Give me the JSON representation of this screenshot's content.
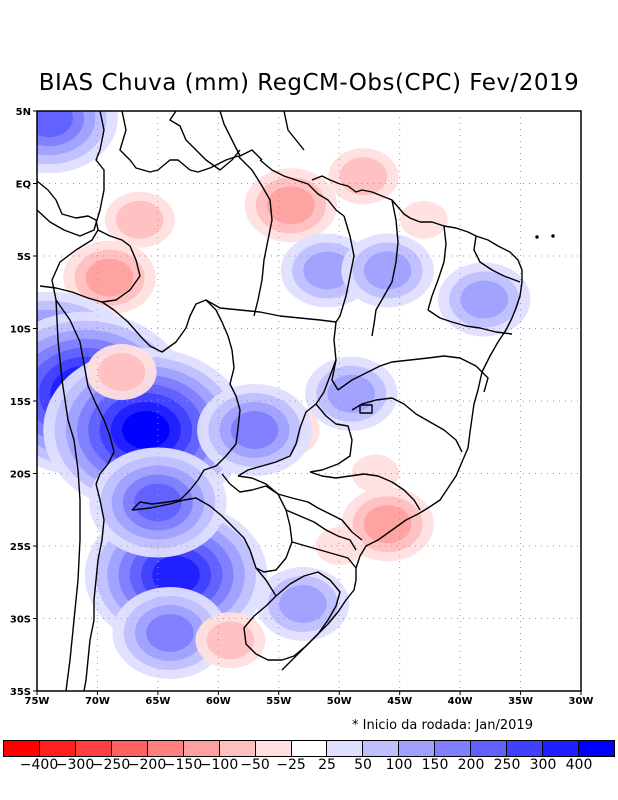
{
  "title": "BIAS Chuva (mm) RegCM-Obs(CPC) Fev/2019",
  "footnote": "* Inicio da rodada: Jan/2019",
  "map": {
    "lon_range": [
      -75,
      -30
    ],
    "lat_range": [
      -35,
      5
    ],
    "lat_ticks": [
      {
        "value": 5,
        "label": "5N"
      },
      {
        "value": 0,
        "label": "EQ"
      },
      {
        "value": -5,
        "label": "5S"
      },
      {
        "value": -10,
        "label": "10S"
      },
      {
        "value": -15,
        "label": "15S"
      },
      {
        "value": -20,
        "label": "20S"
      },
      {
        "value": -25,
        "label": "25S"
      },
      {
        "value": -30,
        "label": "30S"
      },
      {
        "value": -35,
        "label": "35S"
      }
    ],
    "lon_ticks": [
      {
        "value": -75,
        "label": "75W"
      },
      {
        "value": -70,
        "label": "70W"
      },
      {
        "value": -65,
        "label": "65W"
      },
      {
        "value": -60,
        "label": "60W"
      },
      {
        "value": -55,
        "label": "55W"
      },
      {
        "value": -50,
        "label": "50W"
      },
      {
        "value": -45,
        "label": "45W"
      },
      {
        "value": -40,
        "label": "40W"
      },
      {
        "value": -35,
        "label": "35W"
      },
      {
        "value": -30,
        "label": "30W"
      }
    ],
    "grid": true
  },
  "legend": {
    "colors": [
      "#ff0000",
      "#ff2020",
      "#ff4040",
      "#ff6060",
      "#ff8080",
      "#ffa0a0",
      "#ffbfbf",
      "#ffdfdf",
      "#ffffff",
      "#dfdfff",
      "#bfbfff",
      "#a0a0ff",
      "#8080ff",
      "#6060ff",
      "#4040ff",
      "#2020ff",
      "#0000ff"
    ],
    "labels": [
      "-400",
      "-300",
      "-250",
      "-200",
      "-150",
      "-100",
      "-50",
      "-25",
      "25",
      "50",
      "100",
      "150",
      "200",
      "250",
      "300",
      "400"
    ]
  },
  "chart_data": {
    "type": "heatmap",
    "title": "BIAS Chuva (mm) RegCM-Obs(CPC) Fev/2019",
    "xlabel": "",
    "ylabel": "",
    "xlim": [
      -75,
      -30
    ],
    "ylim": [
      -35,
      5
    ],
    "levels": [
      -400,
      -300,
      -250,
      -200,
      -150,
      -100,
      -50,
      -25,
      25,
      50,
      100,
      150,
      200,
      250,
      300,
      400
    ],
    "blobs": [
      {
        "lon": -74,
        "lat": 4.5,
        "value": 200
      },
      {
        "lon": -66.5,
        "lat": -2.5,
        "value": -100
      },
      {
        "lon": -69,
        "lat": -6.5,
        "value": -150
      },
      {
        "lon": -54,
        "lat": -1.5,
        "value": -150
      },
      {
        "lon": -48,
        "lat": 0.5,
        "value": -100
      },
      {
        "lon": -43,
        "lat": -2.5,
        "value": -50
      },
      {
        "lon": -51,
        "lat": -6,
        "value": 100
      },
      {
        "lon": -46,
        "lat": -6,
        "value": 100
      },
      {
        "lon": -74,
        "lat": -12.5,
        "value": 300
      },
      {
        "lon": -71,
        "lat": -14.5,
        "value": 400
      },
      {
        "lon": -66,
        "lat": -17,
        "value": 400
      },
      {
        "lon": -68,
        "lat": -13,
        "value": -100
      },
      {
        "lon": -63.5,
        "lat": -27,
        "value": 300
      },
      {
        "lon": -65,
        "lat": -22,
        "value": 200
      },
      {
        "lon": -64,
        "lat": -31,
        "value": 150
      },
      {
        "lon": -54.5,
        "lat": -17,
        "value": -100
      },
      {
        "lon": -57,
        "lat": -17,
        "value": 150
      },
      {
        "lon": -49,
        "lat": -14.5,
        "value": 100
      },
      {
        "lon": -47,
        "lat": -20,
        "value": -50
      },
      {
        "lon": -46,
        "lat": -23.5,
        "value": -150
      },
      {
        "lon": -53,
        "lat": -29,
        "value": 100
      },
      {
        "lon": -59,
        "lat": -31.5,
        "value": -100
      },
      {
        "lon": -50,
        "lat": -25,
        "value": -50
      },
      {
        "lon": -38,
        "lat": -8,
        "value": 100
      }
    ]
  }
}
